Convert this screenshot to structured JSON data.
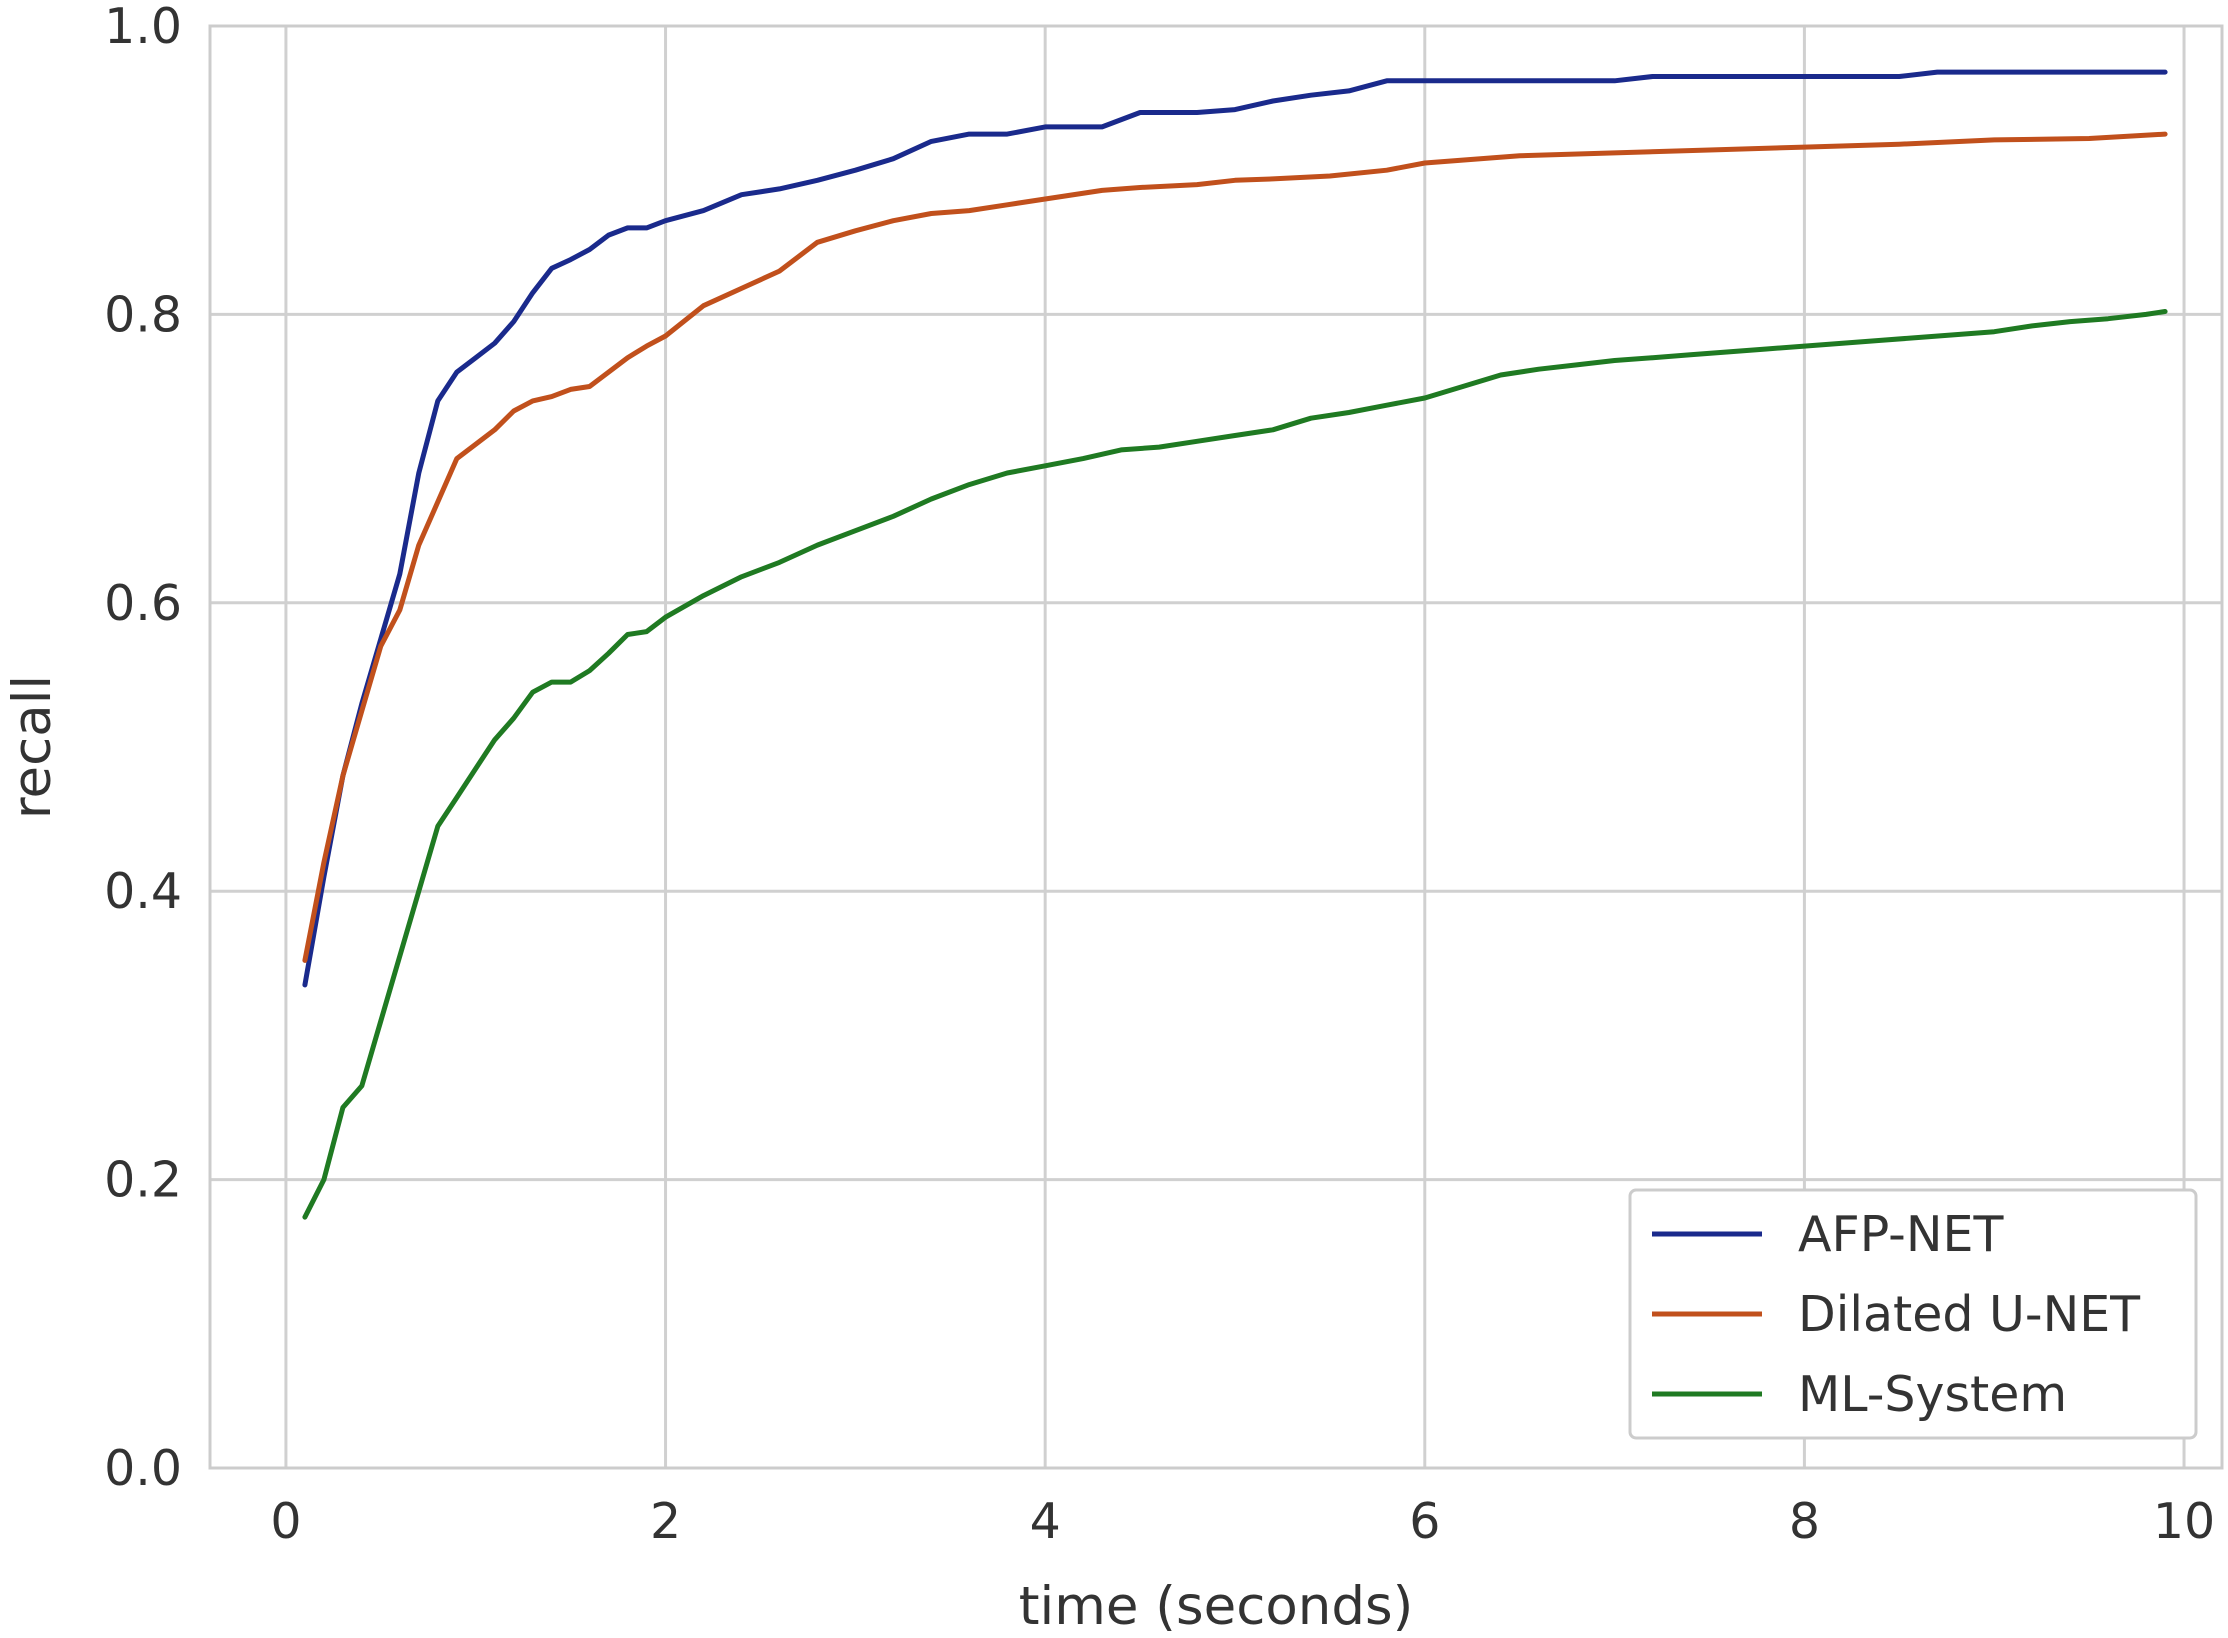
{
  "chart_data": {
    "type": "line",
    "xlabel": "time (seconds)",
    "ylabel": "recall",
    "xlim": [
      -0.4,
      10.2
    ],
    "ylim": [
      0.0,
      1.0
    ],
    "xticks": [
      0,
      2,
      4,
      6,
      8,
      10
    ],
    "yticks": [
      0.0,
      0.2,
      0.4,
      0.6,
      0.8,
      1.0
    ],
    "xtick_labels": [
      "0",
      "2",
      "4",
      "6",
      "8",
      "10"
    ],
    "ytick_labels": [
      "0.0",
      "0.2",
      "0.4",
      "0.6",
      "0.8",
      "1.0"
    ],
    "grid": true,
    "legend_position": "bottom-right",
    "series": [
      {
        "name": "AFP-NET",
        "color": "#1a2a8c",
        "x": [
          0.1,
          0.2,
          0.3,
          0.4,
          0.5,
          0.6,
          0.7,
          0.8,
          0.9,
          1.0,
          1.1,
          1.2,
          1.3,
          1.4,
          1.5,
          1.6,
          1.7,
          1.8,
          1.9,
          2.0,
          2.2,
          2.4,
          2.6,
          2.8,
          3.0,
          3.2,
          3.4,
          3.6,
          3.8,
          4.0,
          4.3,
          4.5,
          4.8,
          5.0,
          5.2,
          5.4,
          5.6,
          5.8,
          6.0,
          6.5,
          7.0,
          7.2,
          7.5,
          8.0,
          8.5,
          8.7,
          9.0,
          9.5,
          9.9
        ],
        "y": [
          0.335,
          0.41,
          0.48,
          0.53,
          0.575,
          0.62,
          0.69,
          0.74,
          0.76,
          0.77,
          0.78,
          0.795,
          0.815,
          0.832,
          0.838,
          0.845,
          0.855,
          0.86,
          0.86,
          0.865,
          0.872,
          0.883,
          0.887,
          0.893,
          0.9,
          0.908,
          0.92,
          0.925,
          0.925,
          0.93,
          0.93,
          0.94,
          0.94,
          0.942,
          0.948,
          0.952,
          0.955,
          0.962,
          0.962,
          0.962,
          0.962,
          0.965,
          0.965,
          0.965,
          0.965,
          0.968,
          0.968,
          0.968,
          0.968
        ]
      },
      {
        "name": "Dilated U-NET",
        "color": "#c1501c",
        "x": [
          0.1,
          0.2,
          0.3,
          0.4,
          0.5,
          0.6,
          0.7,
          0.8,
          0.9,
          1.0,
          1.1,
          1.2,
          1.3,
          1.4,
          1.5,
          1.6,
          1.7,
          1.8,
          1.9,
          2.0,
          2.2,
          2.4,
          2.6,
          2.8,
          3.0,
          3.2,
          3.4,
          3.6,
          3.8,
          4.0,
          4.3,
          4.5,
          4.8,
          5.0,
          5.2,
          5.5,
          5.8,
          6.0,
          6.5,
          7.0,
          7.5,
          8.0,
          8.5,
          9.0,
          9.5,
          9.9
        ],
        "y": [
          0.352,
          0.42,
          0.48,
          0.525,
          0.57,
          0.595,
          0.64,
          0.67,
          0.7,
          0.71,
          0.72,
          0.733,
          0.74,
          0.743,
          0.748,
          0.75,
          0.76,
          0.77,
          0.778,
          0.785,
          0.806,
          0.818,
          0.83,
          0.85,
          0.858,
          0.865,
          0.87,
          0.872,
          0.876,
          0.88,
          0.886,
          0.888,
          0.89,
          0.893,
          0.894,
          0.896,
          0.9,
          0.905,
          0.91,
          0.912,
          0.914,
          0.916,
          0.918,
          0.921,
          0.922,
          0.925
        ]
      },
      {
        "name": "ML-System",
        "color": "#1f7a22",
        "x": [
          0.1,
          0.2,
          0.3,
          0.4,
          0.5,
          0.6,
          0.7,
          0.8,
          0.9,
          1.0,
          1.1,
          1.2,
          1.3,
          1.4,
          1.5,
          1.6,
          1.7,
          1.8,
          1.9,
          2.0,
          2.2,
          2.4,
          2.6,
          2.8,
          3.0,
          3.2,
          3.4,
          3.6,
          3.8,
          4.0,
          4.2,
          4.4,
          4.6,
          4.8,
          5.0,
          5.2,
          5.4,
          5.6,
          5.8,
          6.0,
          6.2,
          6.4,
          6.6,
          6.8,
          7.0,
          7.2,
          7.4,
          7.6,
          7.8,
          8.0,
          8.2,
          8.4,
          8.6,
          8.8,
          9.0,
          9.2,
          9.4,
          9.6,
          9.8,
          9.9
        ],
        "y": [
          0.174,
          0.2,
          0.25,
          0.265,
          0.31,
          0.355,
          0.4,
          0.445,
          0.465,
          0.485,
          0.505,
          0.52,
          0.538,
          0.545,
          0.545,
          0.553,
          0.565,
          0.578,
          0.58,
          0.59,
          0.605,
          0.618,
          0.628,
          0.64,
          0.65,
          0.66,
          0.672,
          0.682,
          0.69,
          0.695,
          0.7,
          0.706,
          0.708,
          0.712,
          0.716,
          0.72,
          0.728,
          0.732,
          0.737,
          0.742,
          0.75,
          0.758,
          0.762,
          0.765,
          0.768,
          0.77,
          0.772,
          0.774,
          0.776,
          0.778,
          0.78,
          0.782,
          0.784,
          0.786,
          0.788,
          0.792,
          0.795,
          0.797,
          0.8,
          0.802
        ]
      }
    ]
  }
}
